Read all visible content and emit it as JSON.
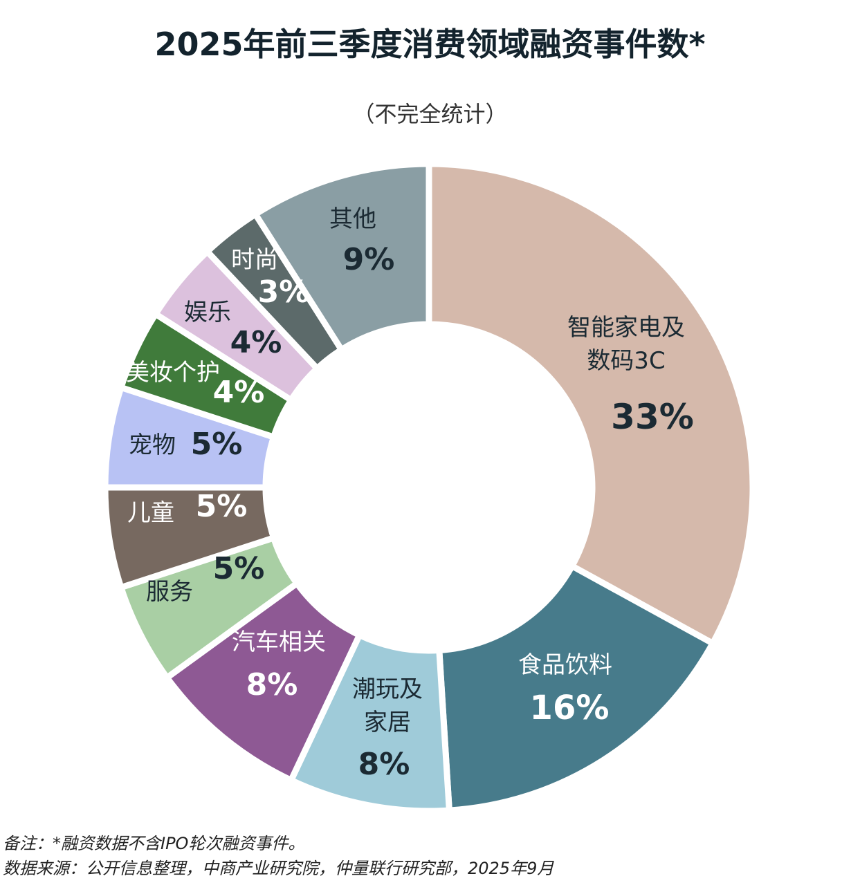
{
  "chart_data": {
    "type": "pie",
    "variant": "donut",
    "title": "2025年前三季度消费领域融资事件数*",
    "subtitle": "（不完全统计）",
    "unit": "%",
    "start": "top, clockwise",
    "slices": [
      {
        "label": "智能家电及数码3C",
        "value": 33,
        "color": "#d5b9ab"
      },
      {
        "label": "食品饮料",
        "value": 16,
        "color": "#477b8b"
      },
      {
        "label": "潮玩及家居",
        "value": 8,
        "color": "#9fcbd9"
      },
      {
        "label": "汽车相关",
        "value": 8,
        "color": "#8e5994"
      },
      {
        "label": "服务",
        "value": 5,
        "color": "#a9cfa4"
      },
      {
        "label": "儿童",
        "value": 5,
        "color": "#776960"
      },
      {
        "label": "宠物",
        "value": 5,
        "color": "#b8c2f4"
      },
      {
        "label": "美妆个护",
        "value": 4,
        "color": "#407b3b"
      },
      {
        "label": "娱乐",
        "value": 4,
        "color": "#dcc1dd"
      },
      {
        "label": "时尚",
        "value": 3,
        "color": "#5c6a6a"
      },
      {
        "label": "其他",
        "value": 9,
        "color": "#8a9ea4"
      }
    ]
  },
  "footer": {
    "note": "备注：*融资数据不含IPO轮次融资事件。",
    "source": "数据来源：公开信息整理，中商产业研究院，仲量联行研究部，2025年9月"
  }
}
